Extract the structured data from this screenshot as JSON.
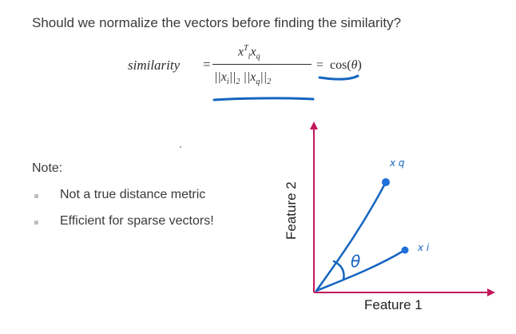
{
  "slide": {
    "title": "Should we normalize the vectors before finding the similarity?",
    "formula": {
      "lhs": "similarity",
      "equals": "=",
      "numerator": {
        "x_i": "x",
        "i_sup": "T",
        "i_sub": "i",
        "x_q": "x",
        "q_sub": "q"
      },
      "denominator": {
        "norm_i": "||x",
        "i_sub": "i",
        "norm_i_close": "||",
        "two_a": "2",
        "norm_q": "||x",
        "q_sub": "q",
        "norm_q_close": "||",
        "two_b": "2"
      },
      "equals2": "=",
      "rhs_func": "cos(",
      "rhs_var": "θ",
      "rhs_close": ")"
    },
    "note": {
      "label": "Note:",
      "bullets": [
        "Not a true distance metric",
        "Efficient for sparse vectors!"
      ]
    },
    "figure": {
      "x_axis_label": "Feature 1",
      "y_axis_label": "Feature 2",
      "vector_a_label": "x q",
      "vector_b_label": "x i",
      "angle_label": "θ",
      "axis_color": "#c2185b",
      "ink_color": "#1565c0"
    }
  }
}
